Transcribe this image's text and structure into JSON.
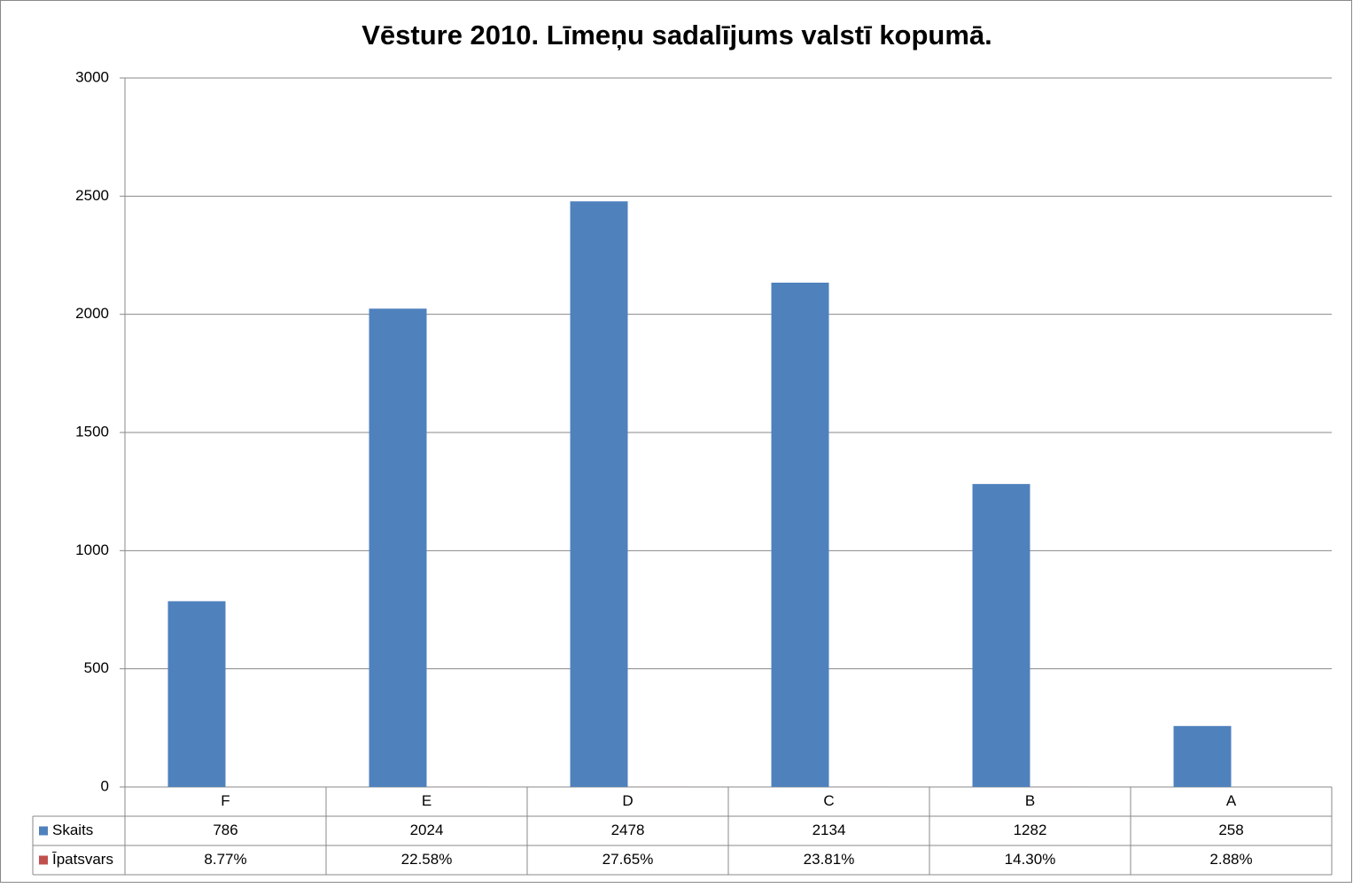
{
  "chart_data": {
    "type": "bar",
    "title": "Vēsture 2010. Līmeņu sadalījums valstī kopumā.",
    "categories": [
      "F",
      "E",
      "D",
      "C",
      "B",
      "A"
    ],
    "series": [
      {
        "name": "Skaits",
        "color": "#4f81bd",
        "values": [
          786,
          2024,
          2478,
          2134,
          1282,
          258
        ]
      },
      {
        "name": "Īpatsvars",
        "color": "#c0504d",
        "values": [
          0.0877,
          0.2258,
          0.2765,
          0.2381,
          0.143,
          0.0288
        ],
        "value_labels": [
          "8.77%",
          "22.58%",
          "27.65%",
          "23.81%",
          "14.30%",
          "2.88%"
        ]
      }
    ],
    "ylim": [
      0,
      3000
    ],
    "yticks": [
      0,
      500,
      1000,
      1500,
      2000,
      2500,
      3000
    ],
    "grid": true
  }
}
